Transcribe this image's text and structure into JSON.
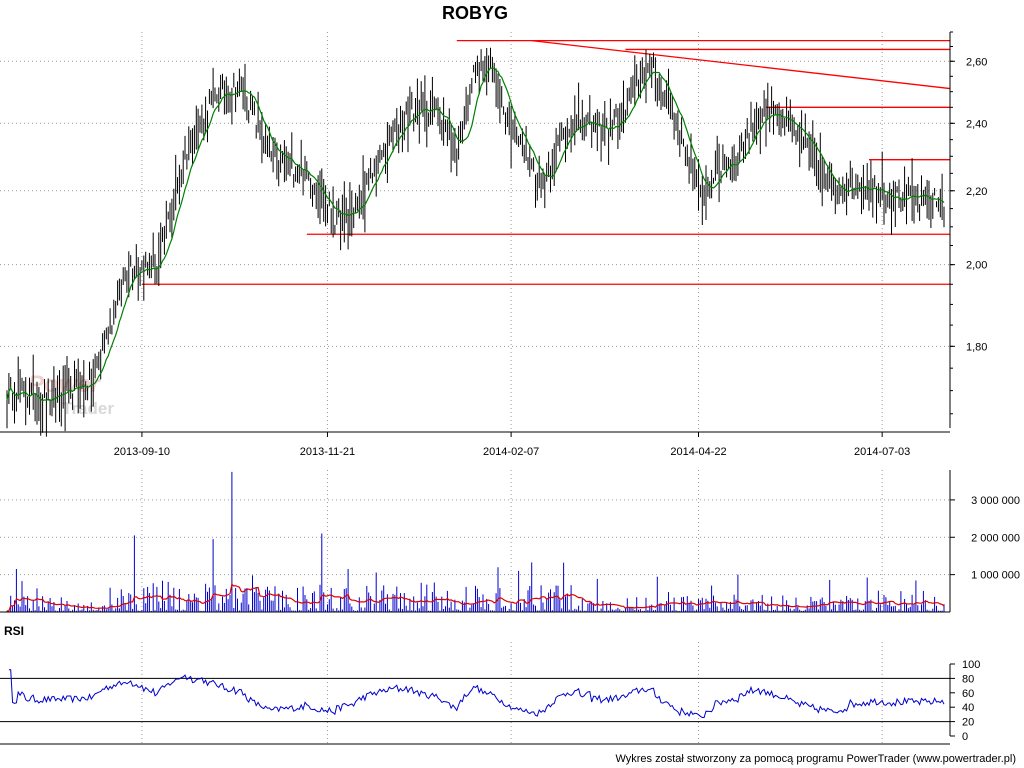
{
  "chart_data": [
    {
      "type": "ohlc",
      "title": "ROBYG",
      "ylim": [
        1.62,
        2.7
      ],
      "scale": "log",
      "y_ticks": [
        {
          "value": 1.8,
          "label": "1,80"
        },
        {
          "value": 2.0,
          "label": "2,00"
        },
        {
          "value": 2.2,
          "label": "2,20"
        },
        {
          "value": 2.4,
          "label": "2,40"
        },
        {
          "value": 2.6,
          "label": "2,60"
        }
      ],
      "x_ticks": [
        "2013-09-10",
        "2013-11-21",
        "2014-02-07",
        "2014-04-22",
        "2014-07-03"
      ],
      "anchors": [
        [
          0,
          1.7
        ],
        [
          20,
          1.68
        ],
        [
          35,
          1.7
        ],
        [
          45,
          1.72
        ],
        [
          55,
          1.85
        ],
        [
          65,
          2.0
        ],
        [
          80,
          1.99
        ],
        [
          95,
          2.3
        ],
        [
          110,
          2.48
        ],
        [
          125,
          2.52
        ],
        [
          140,
          2.3
        ],
        [
          160,
          2.25
        ],
        [
          175,
          2.12
        ],
        [
          185,
          2.14
        ],
        [
          205,
          2.35
        ],
        [
          215,
          2.44
        ],
        [
          230,
          2.44
        ],
        [
          240,
          2.3
        ],
        [
          250,
          2.58
        ],
        [
          260,
          2.56
        ],
        [
          270,
          2.38
        ],
        [
          285,
          2.22
        ],
        [
          300,
          2.4
        ],
        [
          320,
          2.38
        ],
        [
          330,
          2.43
        ],
        [
          340,
          2.58
        ],
        [
          345,
          2.56
        ],
        [
          355,
          2.44
        ],
        [
          370,
          2.18
        ],
        [
          380,
          2.27
        ],
        [
          390,
          2.3
        ],
        [
          400,
          2.42
        ],
        [
          410,
          2.44
        ],
        [
          420,
          2.37
        ],
        [
          430,
          2.3
        ],
        [
          440,
          2.2
        ],
        [
          450,
          2.22
        ],
        [
          465,
          2.21
        ],
        [
          475,
          2.18
        ],
        [
          490,
          2.17
        ],
        [
          500,
          2.17
        ]
      ],
      "moving_average": {
        "period": 10,
        "color": "#008000"
      },
      "bar_color": "#000000",
      "support_resistance_lines": [
        {
          "from": [
            240,
            2.67
          ],
          "to": [
            500,
            2.67
          ]
        },
        {
          "from": [
            330,
            2.64
          ],
          "to": [
            500,
            2.64
          ]
        },
        {
          "from": [
            405,
            2.45
          ],
          "to": [
            500,
            2.45
          ]
        },
        {
          "from": [
            460,
            2.29
          ],
          "to": [
            500,
            2.29
          ]
        },
        {
          "from": [
            160,
            2.08
          ],
          "to": [
            500,
            2.08
          ]
        },
        {
          "from": [
            72,
            1.95
          ],
          "to": [
            500,
            1.95
          ]
        },
        {
          "from": [
            280,
            2.67
          ],
          "to": [
            500,
            2.51
          ]
        }
      ],
      "line_color": "#ff0000",
      "watermark": [
        "Power",
        "Trader"
      ]
    },
    {
      "type": "bar",
      "name": "volume",
      "ylim": [
        0,
        3800000
      ],
      "y_ticks": [
        {
          "value": 1000000,
          "label": "1 000 000"
        },
        {
          "value": 2000000,
          "label": "2 000 000"
        },
        {
          "value": 3000000,
          "label": "3 000 000"
        }
      ],
      "bar_color": "#0000cc",
      "average_color": "#e00000",
      "spikes": [
        [
          5,
          1150000
        ],
        [
          68,
          2050000
        ],
        [
          110,
          1950000
        ],
        [
          120,
          3750000
        ],
        [
          168,
          2100000
        ],
        [
          182,
          1150000
        ],
        [
          262,
          1200000
        ],
        [
          273,
          1100000
        ],
        [
          390,
          1000000
        ]
      ]
    },
    {
      "type": "line",
      "title": "RSI",
      "ylim": [
        0,
        100
      ],
      "y_ticks": [
        {
          "value": 0,
          "label": "0"
        },
        {
          "value": 20,
          "label": "20"
        },
        {
          "value": 40,
          "label": "40"
        },
        {
          "value": 60,
          "label": "60"
        },
        {
          "value": 80,
          "label": "80"
        },
        {
          "value": 100,
          "label": "100"
        }
      ],
      "reference_lines": [
        20,
        80
      ],
      "color": "#0000cc"
    }
  ],
  "footer": "Wykres został stworzony za pomocą programu PowerTrader (www.powertrader.pl)"
}
